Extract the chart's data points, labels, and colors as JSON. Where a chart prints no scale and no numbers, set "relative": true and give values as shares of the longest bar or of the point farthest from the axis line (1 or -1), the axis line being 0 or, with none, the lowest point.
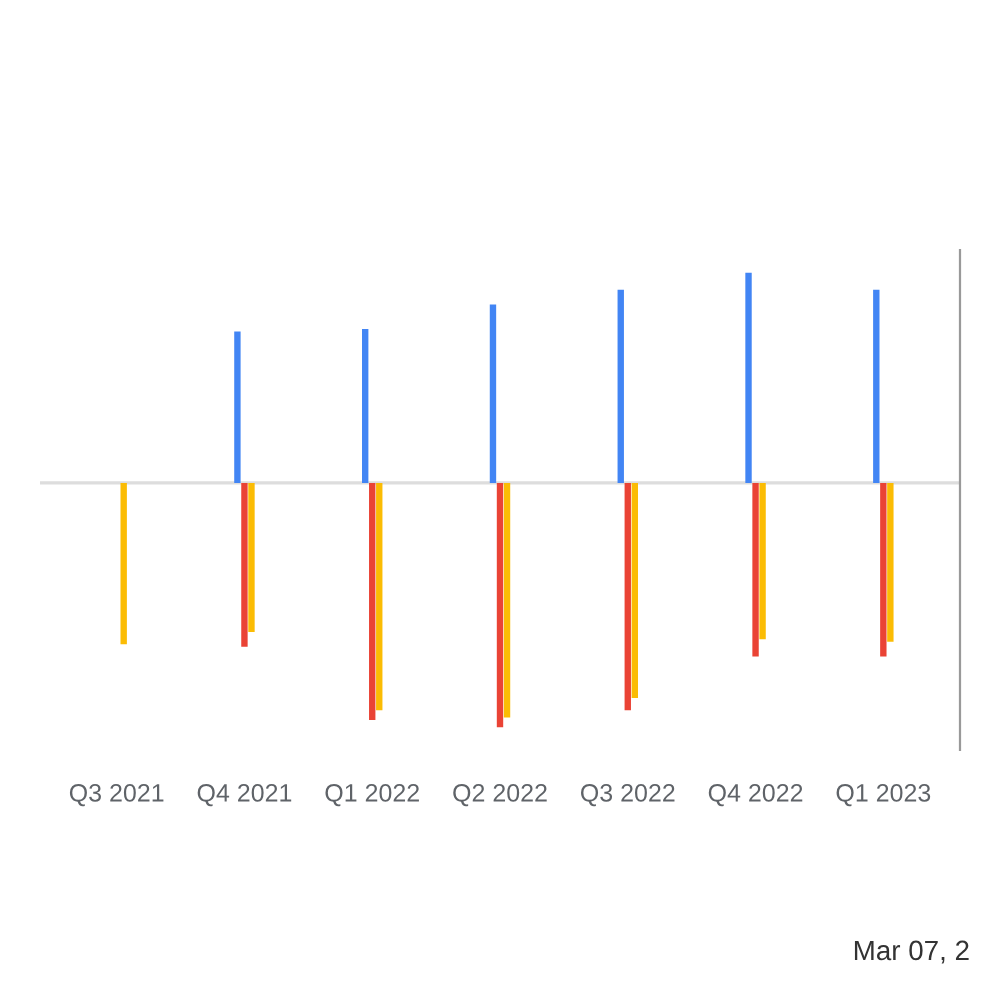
{
  "chart_data": {
    "type": "bar",
    "relative": true,
    "categories": [
      "Q3 2021",
      "Q4 2021",
      "Q1 2022",
      "Q2 2022",
      "Q3 2022",
      "Q4 2022",
      "Q1 2023"
    ],
    "series": [
      {
        "color": "#4285f4",
        "values": [
          null,
          0.62,
          0.63,
          0.73,
          0.79,
          0.86,
          0.79
        ]
      },
      {
        "color": "#ea4335",
        "values": [
          null,
          -0.67,
          -0.97,
          -1,
          -0.93,
          -0.71,
          -0.71
        ]
      },
      {
        "color": "#fbbc04",
        "values": [
          -0.66,
          -0.61,
          -0.93,
          -0.96,
          -0.88,
          -0.64,
          -0.65
        ]
      }
    ],
    "annotations": [
      "Mar 07, 2"
    ]
  }
}
